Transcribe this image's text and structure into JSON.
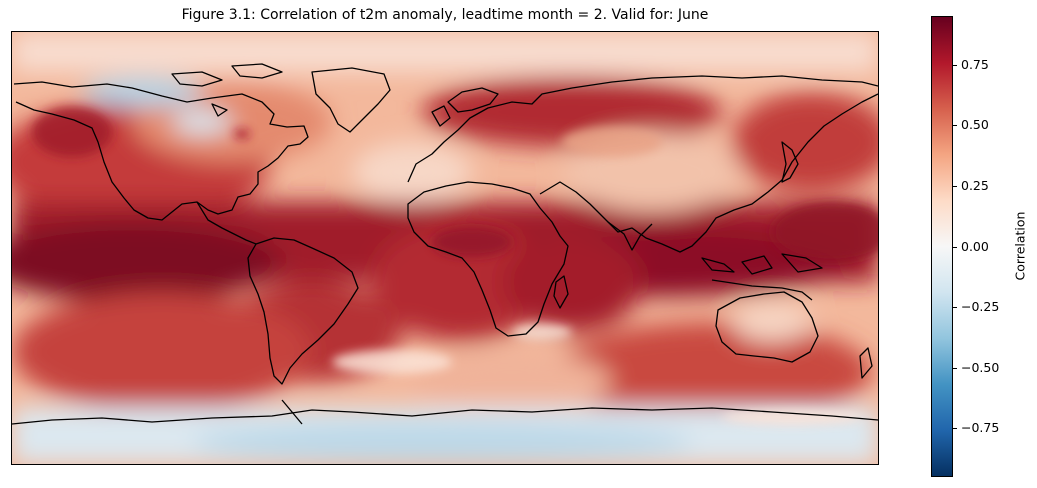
{
  "figure": {
    "title": "Figure 3.1: Correlation of t2m anomaly, leadtime month = 2. Valid for: June"
  },
  "map": {
    "field": "correlation",
    "projection": "PlateCarree",
    "coastlines": true,
    "colormap": "RdBu_r"
  },
  "colorbar": {
    "label": "Correlation",
    "range": [
      -0.95,
      0.95
    ],
    "ticks": [
      "−0.75",
      "−0.50",
      "−0.25",
      "0.00",
      "0.25",
      "0.50",
      "0.75"
    ],
    "tick_values": [
      -0.75,
      -0.5,
      -0.25,
      0,
      0.25,
      0.5,
      0.75
    ],
    "colors": [
      "#053061",
      "#2166ac",
      "#4393c3",
      "#92c5de",
      "#d1e5f0",
      "#f7f7f7",
      "#fddbc7",
      "#f4a582",
      "#d6604d",
      "#b2182b",
      "#67001f"
    ]
  }
}
